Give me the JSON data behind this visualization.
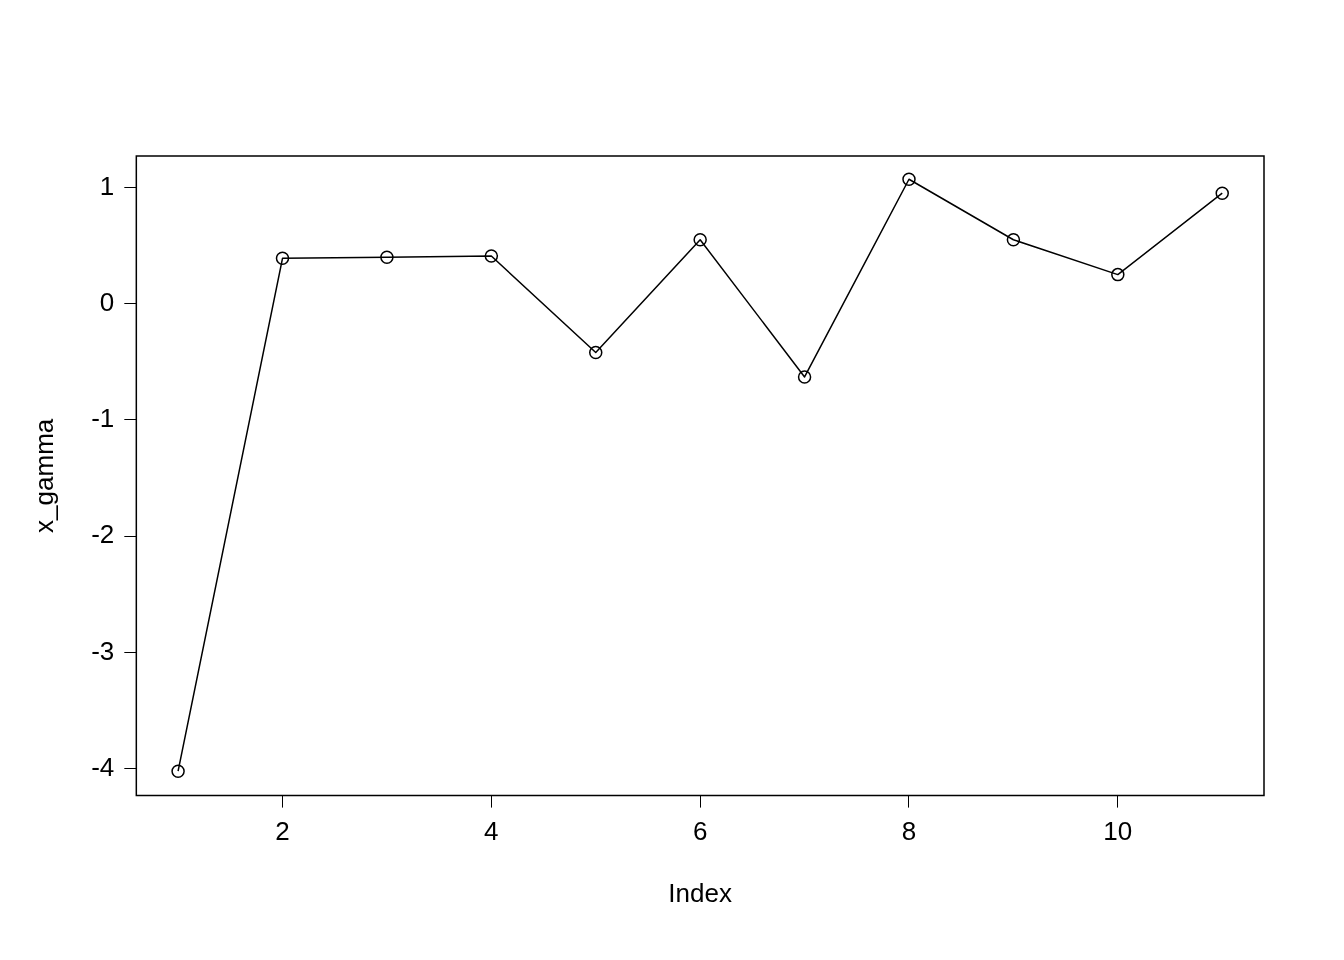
{
  "chart_data": {
    "type": "line",
    "xlabel": "Index",
    "ylabel": "x_gamma",
    "x": [
      1,
      2,
      3,
      4,
      5,
      6,
      7,
      8,
      9,
      10,
      11
    ],
    "series": [
      {
        "color": "#000000",
        "values": [
          -4.02,
          0.39,
          0.4,
          0.41,
          -0.42,
          0.55,
          -0.63,
          1.07,
          0.55,
          0.25,
          0.95
        ]
      }
    ],
    "xlim": [
      0.6,
      11.4
    ],
    "xticks": [
      2,
      4,
      6,
      8,
      10
    ],
    "ylim": [
      -4.23,
      1.27
    ],
    "yticks": [
      -4,
      -3,
      -2,
      -1,
      0,
      1
    ],
    "grid": false,
    "legend": false,
    "marker": "circle",
    "line_style": "solid"
  }
}
